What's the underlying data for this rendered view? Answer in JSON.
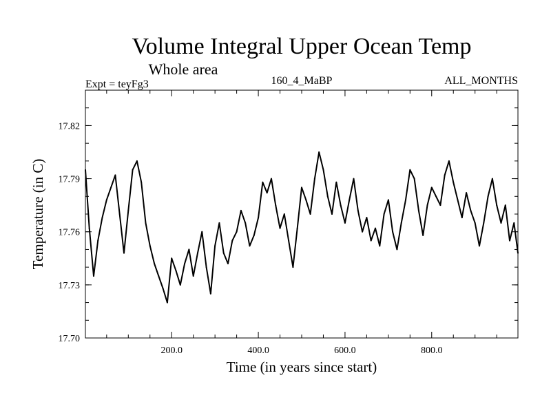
{
  "chart_data": {
    "type": "line",
    "title": "Volume Integral Upper Ocean Temp",
    "subtitle": "Whole area",
    "header_left": "Expt = teyFg3",
    "header_center": "160_4_MaBP",
    "header_right": "ALL_MONTHS",
    "xlabel": "Time (in years since start)",
    "ylabel": "Temperature (in C)",
    "xlim": [
      1,
      999
    ],
    "ylim": [
      17.7,
      17.84
    ],
    "x_ticks": [
      200,
      400,
      600,
      800
    ],
    "x_tick_labels": [
      "200.0",
      "400.0",
      "600.0",
      "800.0"
    ],
    "y_ticks": [
      17.7,
      17.73,
      17.76,
      17.79,
      17.82
    ],
    "y_tick_labels": [
      "17.70",
      "17.73",
      "17.76",
      "17.79",
      "17.82"
    ],
    "series": [
      {
        "name": "Volume Integral Upper Ocean Temp",
        "color": "#000000",
        "x": [
          1,
          10,
          20,
          30,
          40,
          50,
          60,
          70,
          80,
          90,
          100,
          110,
          120,
          130,
          140,
          150,
          160,
          170,
          180,
          190,
          200,
          210,
          220,
          230,
          240,
          250,
          260,
          270,
          280,
          290,
          300,
          310,
          320,
          330,
          340,
          350,
          360,
          370,
          380,
          390,
          400,
          410,
          420,
          430,
          440,
          450,
          460,
          470,
          480,
          490,
          500,
          510,
          520,
          530,
          540,
          550,
          560,
          570,
          580,
          590,
          600,
          610,
          620,
          630,
          640,
          650,
          660,
          670,
          680,
          690,
          700,
          710,
          720,
          730,
          740,
          750,
          760,
          770,
          780,
          790,
          800,
          810,
          820,
          830,
          840,
          850,
          860,
          870,
          880,
          890,
          900,
          910,
          920,
          930,
          940,
          950,
          960,
          970,
          980,
          990,
          999
        ],
        "values": [
          17.795,
          17.762,
          17.735,
          17.755,
          17.768,
          17.778,
          17.785,
          17.792,
          17.77,
          17.748,
          17.772,
          17.795,
          17.8,
          17.788,
          17.765,
          17.752,
          17.742,
          17.735,
          17.728,
          17.72,
          17.745,
          17.738,
          17.73,
          17.742,
          17.75,
          17.735,
          17.748,
          17.76,
          17.74,
          17.725,
          17.752,
          17.765,
          17.748,
          17.742,
          17.755,
          17.76,
          17.772,
          17.765,
          17.752,
          17.758,
          17.768,
          17.788,
          17.782,
          17.79,
          17.775,
          17.762,
          17.77,
          17.755,
          17.74,
          17.762,
          17.785,
          17.778,
          17.77,
          17.79,
          17.805,
          17.795,
          17.78,
          17.77,
          17.788,
          17.775,
          17.765,
          17.778,
          17.79,
          17.772,
          17.76,
          17.768,
          17.755,
          17.762,
          17.752,
          17.77,
          17.778,
          17.76,
          17.75,
          17.765,
          17.778,
          17.795,
          17.79,
          17.772,
          17.758,
          17.775,
          17.785,
          17.78,
          17.775,
          17.792,
          17.8,
          17.788,
          17.778,
          17.768,
          17.782,
          17.772,
          17.765,
          17.752,
          17.765,
          17.78,
          17.79,
          17.775,
          17.765,
          17.775,
          17.755,
          17.765,
          17.748
        ]
      }
    ]
  }
}
